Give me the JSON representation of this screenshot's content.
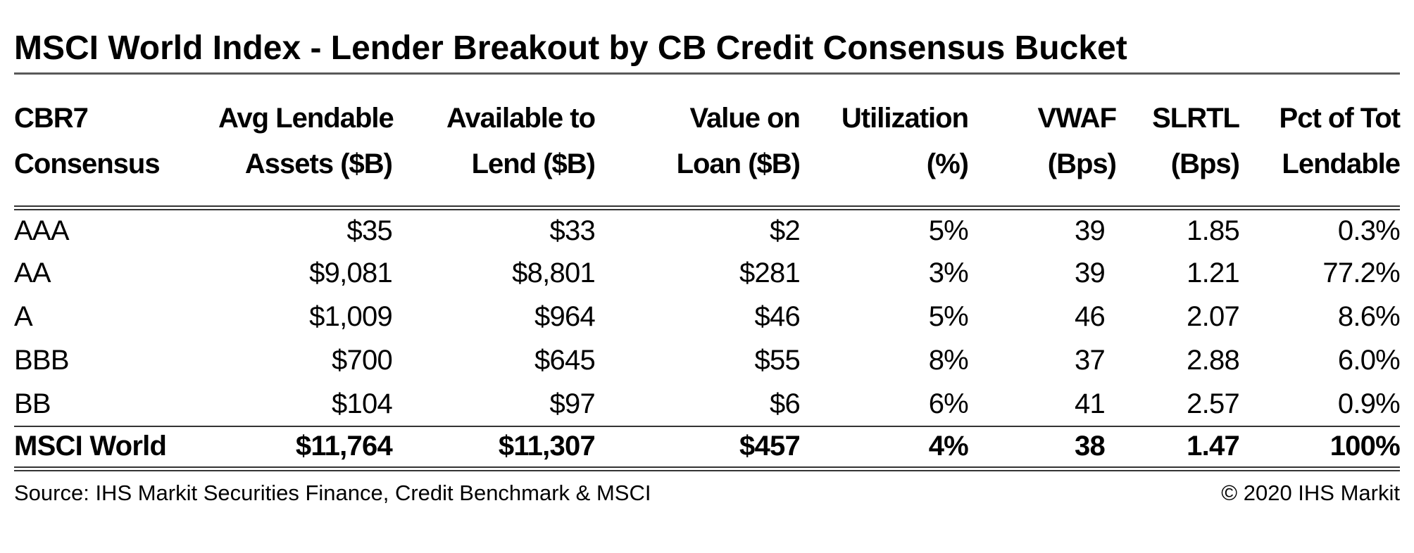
{
  "title": "MSCI World Index - Lender Breakout by CB Credit Consensus Bucket",
  "table": {
    "columns": [
      {
        "id": "cbr7-consensus",
        "label_line1": "CBR7",
        "label_line2": "Consensus"
      },
      {
        "id": "avg-lendable-assets",
        "label_line1": "Avg Lendable",
        "label_line2": "Assets ($B)"
      },
      {
        "id": "available-to-lend",
        "label_line1": "Available to",
        "label_line2": "Lend ($B)"
      },
      {
        "id": "value-on-loan",
        "label_line1": "Value on",
        "label_line2": "Loan ($B)"
      },
      {
        "id": "utilization",
        "label_line1": "Utilization",
        "label_line2": "(%)"
      },
      {
        "id": "vwaf",
        "label_line1": "VWAF",
        "label_line2": "(Bps)"
      },
      {
        "id": "slrtl",
        "label_line1": "SLRTL",
        "label_line2": "(Bps)"
      },
      {
        "id": "pct-of-tot-lendable",
        "label_line1": "Pct of Tot",
        "label_line2": "Lendable"
      }
    ],
    "rows": [
      [
        "AAA",
        "$35",
        "$33",
        "$2",
        "5%",
        "39",
        "1.85",
        "0.3%"
      ],
      [
        "AA",
        "$9,081",
        "$8,801",
        "$281",
        "3%",
        "39",
        "1.21",
        "77.2%"
      ],
      [
        "A",
        "$1,009",
        "$964",
        "$46",
        "5%",
        "46",
        "2.07",
        "8.6%"
      ],
      [
        "BBB",
        "$700",
        "$645",
        "$55",
        "8%",
        "37",
        "2.88",
        "6.0%"
      ],
      [
        "BB",
        "$104",
        "$97",
        "$6",
        "6%",
        "41",
        "2.57",
        "0.9%"
      ]
    ],
    "total_row": [
      "MSCI World",
      "$11,764",
      "$11,307",
      "$457",
      "4%",
      "38",
      "1.47",
      "100%"
    ]
  },
  "footer": {
    "source": "Source: IHS Markit Securities Finance, Credit Benchmark & MSCI",
    "copyright": "© 2020 IHS Markit"
  },
  "colors": {
    "text": "#000000",
    "title_rule": "#595959",
    "table_rule": "#333333",
    "background": "#ffffff"
  },
  "chart_data": {
    "type": "table",
    "title": "MSCI World Index - Lender Breakout by CB Credit Consensus Bucket",
    "columns": [
      "CBR7 Consensus",
      "Avg Lendable Assets ($B)",
      "Available to Lend ($B)",
      "Value on Loan ($B)",
      "Utilization (%)",
      "VWAF (Bps)",
      "SLRTL (Bps)",
      "Pct of Tot Lendable"
    ],
    "rows": [
      [
        "AAA",
        35,
        33,
        2,
        5,
        39,
        1.85,
        0.3
      ],
      [
        "AA",
        9081,
        8801,
        281,
        3,
        39,
        1.21,
        77.2
      ],
      [
        "A",
        1009,
        964,
        46,
        5,
        46,
        2.07,
        8.6
      ],
      [
        "BBB",
        700,
        645,
        55,
        8,
        37,
        2.88,
        6.0
      ],
      [
        "BB",
        104,
        97,
        6,
        6,
        41,
        2.57,
        0.9
      ]
    ],
    "total": [
      "MSCI World",
      11764,
      11307,
      457,
      4,
      38,
      1.47,
      100
    ],
    "source": "Source: IHS Markit Securities Finance, Credit Benchmark & MSCI",
    "copyright": "© 2020 IHS Markit"
  }
}
